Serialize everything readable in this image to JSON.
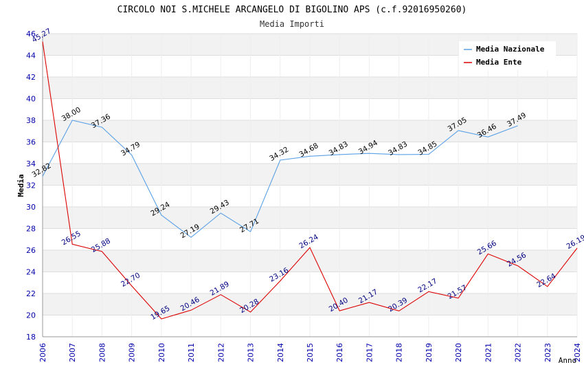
{
  "colors": {
    "nazionale": "#5aa0e6",
    "ente": "#dd0000",
    "tick_text": "#0000aa",
    "ente_label": "#000080",
    "nazionale_label": "#000000",
    "band": "#f2f2f2",
    "grid": "#dddddd"
  },
  "chart_data": {
    "type": "line",
    "title": "CIRCOLO NOI S.MICHELE ARCANGELO DI BIGOLINO APS (c.f.92016950260)",
    "subtitle": "Media Importi",
    "xlabel": "Anno",
    "ylabel": "Media",
    "ylim": [
      18,
      46
    ],
    "yticks": [
      "18",
      "20",
      "22",
      "24",
      "26",
      "28",
      "30",
      "32",
      "34",
      "36",
      "38",
      "40",
      "42",
      "44",
      "46"
    ],
    "x": [
      "2006",
      "2007",
      "2008",
      "2009",
      "2010",
      "2011",
      "2012",
      "2013",
      "2014",
      "2015",
      "2016",
      "2017",
      "2018",
      "2019",
      "2020",
      "2021",
      "2022",
      "2023",
      "2024"
    ],
    "legend_position": "top-right",
    "grid": true,
    "series": [
      {
        "name": "Media Nazionale",
        "values": [
          32.82,
          38.0,
          37.36,
          34.79,
          29.24,
          27.19,
          29.43,
          27.71,
          34.32,
          34.68,
          34.83,
          34.94,
          34.83,
          34.85,
          37.05,
          36.46,
          37.49,
          null,
          null
        ],
        "labels": [
          "32.82",
          "38.00",
          "37.36",
          "34.79",
          "29.24",
          "27.19",
          "29.43",
          "27.71",
          "34.32",
          "34.68",
          "34.83",
          "34.94",
          "34.83",
          "34.85",
          "37.05",
          "36.46",
          "37.49",
          "",
          ""
        ]
      },
      {
        "name": "Media Ente",
        "values": [
          45.27,
          26.55,
          25.88,
          22.7,
          19.65,
          20.46,
          21.89,
          20.28,
          23.16,
          26.24,
          20.4,
          21.17,
          20.39,
          22.17,
          21.57,
          25.66,
          24.56,
          22.64,
          26.19
        ],
        "labels": [
          "45.27",
          "26.55",
          "25.88",
          "22.70",
          "19.65",
          "20.46",
          "21.89",
          "20.28",
          "23.16",
          "26.24",
          "20.40",
          "21.17",
          "20.39",
          "22.17",
          "21.57",
          "25.66",
          "24.56",
          "22.64",
          "26.19"
        ]
      }
    ]
  }
}
